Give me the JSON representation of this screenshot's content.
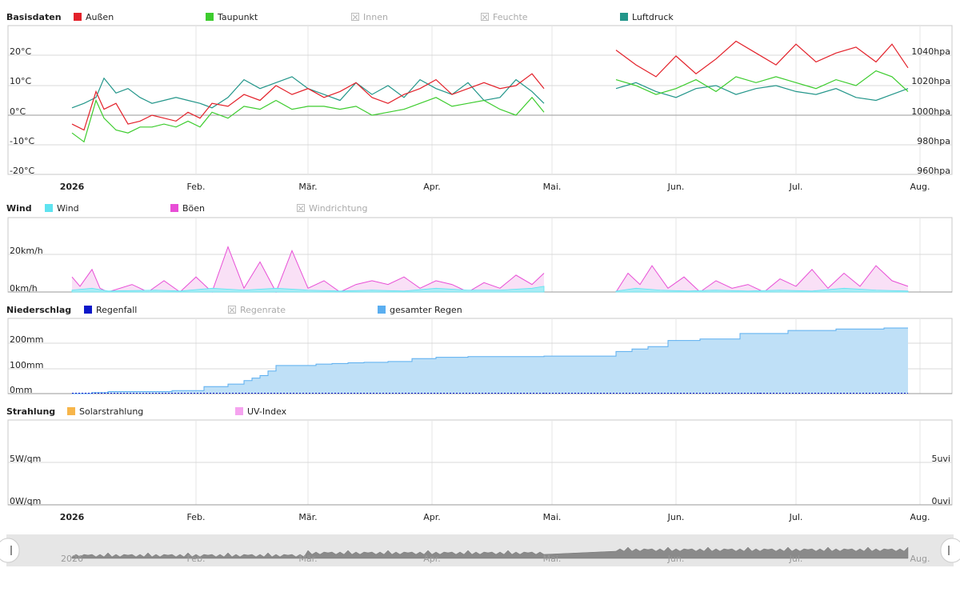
{
  "panels": {
    "basis": {
      "title": "Basisdaten",
      "legend": [
        {
          "label": "Außen",
          "color": "#e3212a",
          "enabled": true,
          "icon": "red-swatch"
        },
        {
          "label": "Taupunkt",
          "color": "#3dcc2e",
          "enabled": true,
          "icon": "green-swatch"
        },
        {
          "label": "Innen",
          "color": "#bbbbbb",
          "enabled": false,
          "icon": "disabled-box"
        },
        {
          "label": "Feuchte",
          "color": "#bbbbbb",
          "enabled": false,
          "icon": "disabled-box"
        },
        {
          "label": "Luftdruck",
          "color": "#23968a",
          "enabled": true,
          "icon": "teal-swatch"
        }
      ],
      "left_ticks": [
        "20°C",
        "10°C",
        "0°C",
        "-10°C",
        "-20°C"
      ],
      "right_ticks": [
        "1040hpa",
        "1020hpa",
        "1000hpa",
        "980hpa",
        "960hpa"
      ]
    },
    "wind": {
      "title": "Wind",
      "legend": [
        {
          "label": "Wind",
          "color": "#5fe3f0",
          "enabled": true,
          "icon": "cyan-swatch"
        },
        {
          "label": "Böen",
          "color": "#e84ed6",
          "enabled": true,
          "icon": "magenta-swatch"
        },
        {
          "label": "Windrichtung",
          "color": "#bbbbbb",
          "enabled": false,
          "icon": "disabled-box"
        }
      ],
      "left_ticks": [
        "20km/h",
        "0km/h"
      ]
    },
    "rain": {
      "title": "Niederschlag",
      "legend": [
        {
          "label": "Regenfall",
          "color": "#0b18c9",
          "enabled": true,
          "icon": "blue-swatch"
        },
        {
          "label": "Regenrate",
          "color": "#bbbbbb",
          "enabled": false,
          "icon": "disabled-box"
        },
        {
          "label": "gesamter Regen",
          "color": "#5aaef0",
          "enabled": true,
          "icon": "lightblue-swatch"
        }
      ],
      "left_ticks": [
        "200mm",
        "100mm",
        "0mm"
      ]
    },
    "solar": {
      "title": "Strahlung",
      "legend": [
        {
          "label": "Solarstrahlung",
          "color": "#f7b54a",
          "enabled": true,
          "icon": "orange-swatch"
        },
        {
          "label": "UV-Index",
          "color": "#f5a3ef",
          "enabled": true,
          "icon": "pink-swatch"
        }
      ],
      "left_ticks": [
        "5W/qm",
        "0W/qm"
      ],
      "right_ticks": [
        "5uvi",
        "0uvi"
      ]
    }
  },
  "months": [
    "2026",
    "Feb.",
    "Mär.",
    "Apr.",
    "Mai.",
    "Jun.",
    "Jul.",
    "Aug."
  ],
  "colors": {
    "grid": "#d8d8d8",
    "axis": "#c8c8c8",
    "rain_fill": "#bfe0f7",
    "rain_line": "#5aaef0",
    "wind_fill": "#a9ecf5",
    "gust_fill": "#f9e0f6",
    "navigator_bg": "#e6e6e6",
    "navigator_series": "#777777"
  },
  "chart_data": [
    {
      "type": "line",
      "title": "Basisdaten",
      "x_unit": "day-of-year 2026",
      "y_left_range": [
        -20,
        25
      ],
      "y_right_range": [
        960,
        1050
      ],
      "grid": true,
      "legend_position": "top",
      "series": [
        {
          "name": "Außen",
          "axis": "left",
          "x": [
            1,
            4,
            7,
            9,
            12,
            15,
            18,
            21,
            24,
            27,
            30,
            33,
            36,
            40,
            44,
            48,
            52,
            56,
            60,
            64,
            68,
            72,
            76,
            80,
            84,
            88,
            92,
            96,
            100,
            104,
            108,
            112,
            116,
            119,
            137,
            142,
            147,
            152,
            157,
            162,
            167,
            172,
            177,
            182,
            187,
            192,
            197,
            202,
            206,
            210
          ],
          "y": [
            -3,
            -5,
            8,
            2,
            4,
            -3,
            -2,
            0,
            -1,
            -2,
            1,
            -1,
            4,
            3,
            7,
            5,
            10,
            7,
            9,
            6,
            8,
            11,
            6,
            4,
            7,
            9,
            12,
            7,
            9,
            11,
            9,
            10,
            14,
            9,
            22,
            17,
            13,
            20,
            14,
            19,
            25,
            21,
            17,
            24,
            18,
            21,
            23,
            18,
            24,
            16
          ]
        },
        {
          "name": "Taupunkt",
          "axis": "left",
          "x": [
            1,
            4,
            7,
            9,
            12,
            15,
            18,
            21,
            24,
            27,
            30,
            33,
            36,
            40,
            44,
            48,
            52,
            56,
            60,
            64,
            68,
            72,
            76,
            80,
            84,
            88,
            92,
            96,
            100,
            104,
            108,
            112,
            116,
            119,
            137,
            142,
            147,
            152,
            157,
            162,
            167,
            172,
            177,
            182,
            187,
            192,
            197,
            202,
            206,
            210
          ],
          "y": [
            -6,
            -9,
            5,
            -1,
            -5,
            -6,
            -4,
            -4,
            -3,
            -4,
            -2,
            -4,
            1,
            -1,
            3,
            2,
            5,
            2,
            3,
            3,
            2,
            3,
            0,
            1,
            2,
            4,
            6,
            3,
            4,
            5,
            2,
            0,
            6,
            1,
            12,
            10,
            7,
            9,
            12,
            8,
            13,
            11,
            13,
            11,
            9,
            12,
            10,
            15,
            13,
            8
          ]
        },
        {
          "name": "Luftdruck",
          "axis": "right",
          "x": [
            1,
            4,
            7,
            9,
            12,
            15,
            18,
            21,
            24,
            27,
            30,
            33,
            36,
            40,
            44,
            48,
            52,
            56,
            60,
            64,
            68,
            72,
            76,
            80,
            84,
            88,
            92,
            96,
            100,
            104,
            108,
            112,
            116,
            119,
            137,
            142,
            147,
            152,
            157,
            162,
            167,
            172,
            177,
            182,
            187,
            192,
            197,
            202,
            206,
            210
          ],
          "y": [
            1005,
            1008,
            1012,
            1025,
            1015,
            1018,
            1012,
            1008,
            1010,
            1012,
            1010,
            1008,
            1005,
            1012,
            1024,
            1018,
            1022,
            1026,
            1018,
            1014,
            1010,
            1022,
            1014,
            1020,
            1012,
            1024,
            1018,
            1014,
            1022,
            1010,
            1012,
            1024,
            1016,
            1008,
            1018,
            1022,
            1016,
            1012,
            1018,
            1020,
            1014,
            1018,
            1020,
            1016,
            1014,
            1018,
            1012,
            1010,
            1014,
            1018
          ]
        }
      ]
    },
    {
      "type": "area",
      "title": "Wind",
      "y_range": [
        0,
        30
      ],
      "series": [
        {
          "name": "Wind",
          "x": [
            1,
            6,
            10,
            22,
            28,
            36,
            44,
            52,
            60,
            68,
            76,
            84,
            92,
            100,
            108,
            116,
            119,
            137,
            142,
            148,
            155,
            162,
            170,
            178,
            186,
            194,
            202,
            210
          ],
          "y": [
            1,
            2,
            0.5,
            1,
            0.5,
            2,
            1,
            2,
            1,
            0.5,
            1,
            0.5,
            2,
            1,
            1,
            2,
            3,
            0.5,
            2,
            1,
            0.5,
            1,
            0.5,
            1,
            0.5,
            2,
            1,
            0.5
          ]
        },
        {
          "name": "Böen",
          "x": [
            1,
            3,
            6,
            8,
            10,
            16,
            20,
            24,
            28,
            32,
            36,
            40,
            44,
            48,
            52,
            56,
            60,
            64,
            68,
            72,
            76,
            80,
            84,
            88,
            92,
            96,
            100,
            104,
            108,
            112,
            116,
            119,
            137,
            140,
            143,
            146,
            150,
            154,
            158,
            162,
            166,
            170,
            174,
            178,
            182,
            186,
            190,
            194,
            198,
            202,
            206,
            210
          ],
          "y": [
            8,
            3,
            12,
            2,
            0,
            4,
            0,
            6,
            0,
            8,
            0,
            24,
            2,
            16,
            0,
            22,
            2,
            6,
            0,
            4,
            6,
            4,
            8,
            2,
            6,
            4,
            0,
            5,
            2,
            9,
            4,
            10,
            0,
            10,
            4,
            14,
            2,
            8,
            0,
            6,
            2,
            4,
            0,
            7,
            3,
            12,
            2,
            10,
            3,
            14,
            6,
            3
          ]
        }
      ]
    },
    {
      "type": "area",
      "title": "Niederschlag",
      "y_range": [
        0,
        270
      ],
      "series": [
        {
          "name": "gesamter Regen",
          "x": [
            1,
            6,
            10,
            22,
            26,
            34,
            40,
            44,
            46,
            48,
            50,
            52,
            58,
            62,
            66,
            70,
            74,
            80,
            86,
            92,
            100,
            110,
            119,
            137,
            141,
            145,
            150,
            158,
            168,
            180,
            192,
            204,
            210
          ],
          "y": [
            0,
            4,
            8,
            8,
            12,
            28,
            38,
            52,
            62,
            72,
            90,
            112,
            112,
            118,
            120,
            123,
            125,
            128,
            140,
            145,
            148,
            148,
            150,
            168,
            178,
            188,
            212,
            218,
            240,
            252,
            258,
            262,
            262
          ]
        },
        {
          "name": "Regenfall",
          "x": [
            119,
            173
          ],
          "y": [
            2,
            3
          ]
        }
      ]
    },
    {
      "type": "line",
      "title": "Strahlung",
      "y_left_range": [
        0,
        10
      ],
      "y_right_range": [
        0,
        10
      ],
      "series": [
        {
          "name": "Solarstrahlung",
          "x": [],
          "y": []
        },
        {
          "name": "UV-Index",
          "x": [],
          "y": []
        }
      ]
    }
  ]
}
